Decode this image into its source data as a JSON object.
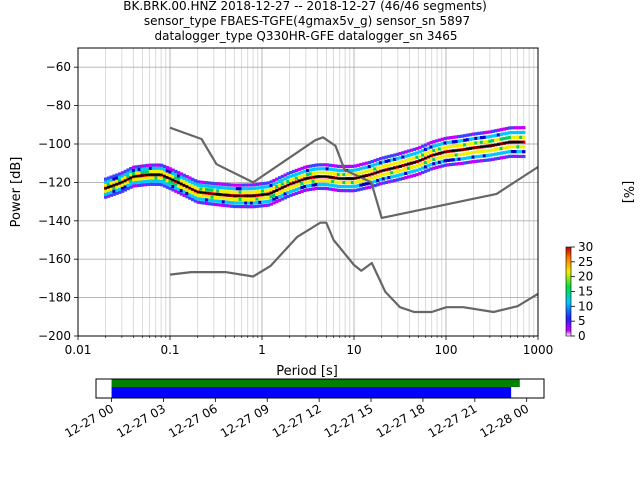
{
  "chart_data": [
    {
      "type": "heatmap",
      "title": {
        "line1": "BK.BRK.00.HNZ   2018-12-27 -- 2018-12-27  (46/46 segments)",
        "line2": "sensor_type FBAES-TGFE(4gmax5v_g) sensor_sn 5897",
        "line3": "datalogger_type Q330HR-GFE datalogger_sn 3465"
      },
      "xlabel": "Period [s]",
      "ylabel": "Power [dB]",
      "x_scale": "log",
      "xlim": [
        0.01,
        1000
      ],
      "ylim": [
        -200,
        -50
      ],
      "x_ticks": [
        0.01,
        0.1,
        1,
        10,
        100,
        1000
      ],
      "x_tick_labels": [
        "0.01",
        "0.1",
        "1",
        "10",
        "100",
        "1000"
      ],
      "y_ticks": [
        -200,
        -180,
        -160,
        -140,
        -120,
        -100,
        -80,
        -60
      ],
      "y_tick_labels": [
        "−200",
        "−180",
        "−160",
        "−140",
        "−120",
        "−100",
        "−80",
        "−60"
      ],
      "grid": true,
      "colorbar": {
        "label": "[%]",
        "range": [
          0,
          30
        ],
        "ticks": [
          0,
          5,
          10,
          15,
          20,
          25,
          30
        ],
        "tick_labels": [
          "0",
          "5",
          "10",
          "15",
          "20",
          "25",
          "30"
        ]
      },
      "noise_models": [
        {
          "role": "high-noise-model",
          "x": [
            0.1,
            0.22,
            0.32,
            0.8,
            3.8,
            4.6,
            6.3,
            7.9,
            15.4,
            20,
            354.8,
            1000
          ],
          "y": [
            -91.5,
            -97.4,
            -110.5,
            -120,
            -98,
            -96.5,
            -101,
            -113.5,
            -120,
            -138.5,
            -126,
            -112
          ]
        },
        {
          "role": "low-noise-model",
          "x": [
            0.1,
            0.17,
            0.4,
            0.8,
            1.24,
            2.4,
            4.3,
            5,
            6,
            10,
            12,
            15.6,
            21.9,
            31.6,
            45,
            70,
            101,
            154,
            328,
            600,
            1000
          ],
          "y": [
            -168,
            -166.7,
            -166.7,
            -169,
            -163.5,
            -148.5,
            -141,
            -141,
            -150,
            -163,
            -166,
            -162,
            -177,
            -185,
            -187.5,
            -187.5,
            -185,
            -185,
            -187.5,
            -184.5,
            -178
          ]
        }
      ],
      "psd_mode": {
        "x": [
          0.02,
          0.03,
          0.04,
          0.06,
          0.08,
          0.1,
          0.15,
          0.2,
          0.3,
          0.5,
          0.8,
          1.2,
          2,
          3,
          4,
          5,
          7,
          10,
          15,
          20,
          30,
          50,
          70,
          100,
          150,
          200,
          300,
          500,
          700
        ],
        "y": [
          -123,
          -120,
          -117,
          -116,
          -116,
          -118,
          -122,
          -125,
          -126,
          -127,
          -127,
          -126,
          -121,
          -118,
          -117,
          -117,
          -118,
          -118,
          -116,
          -114,
          -112,
          -109,
          -106,
          -104,
          -103,
          -102,
          -101,
          -99,
          -99
        ]
      }
    },
    {
      "type": "bar",
      "role": "data-coverage-timeline",
      "x_tick_labels": [
        "12-27 00",
        "12-27 03",
        "12-27 06",
        "12-27 09",
        "12-27 12",
        "12-27 15",
        "12-27 18",
        "12-27 21",
        "12-28 00"
      ],
      "xlim_hours": [
        -0.9,
        25
      ],
      "bars": [
        {
          "role": "data-availability",
          "start_hour": 0,
          "end_hour": 23.6,
          "color": "#008000"
        },
        {
          "role": "psd-segments",
          "start_hour": 0,
          "end_hour": 23.1,
          "color": "#0000ff"
        }
      ]
    }
  ]
}
